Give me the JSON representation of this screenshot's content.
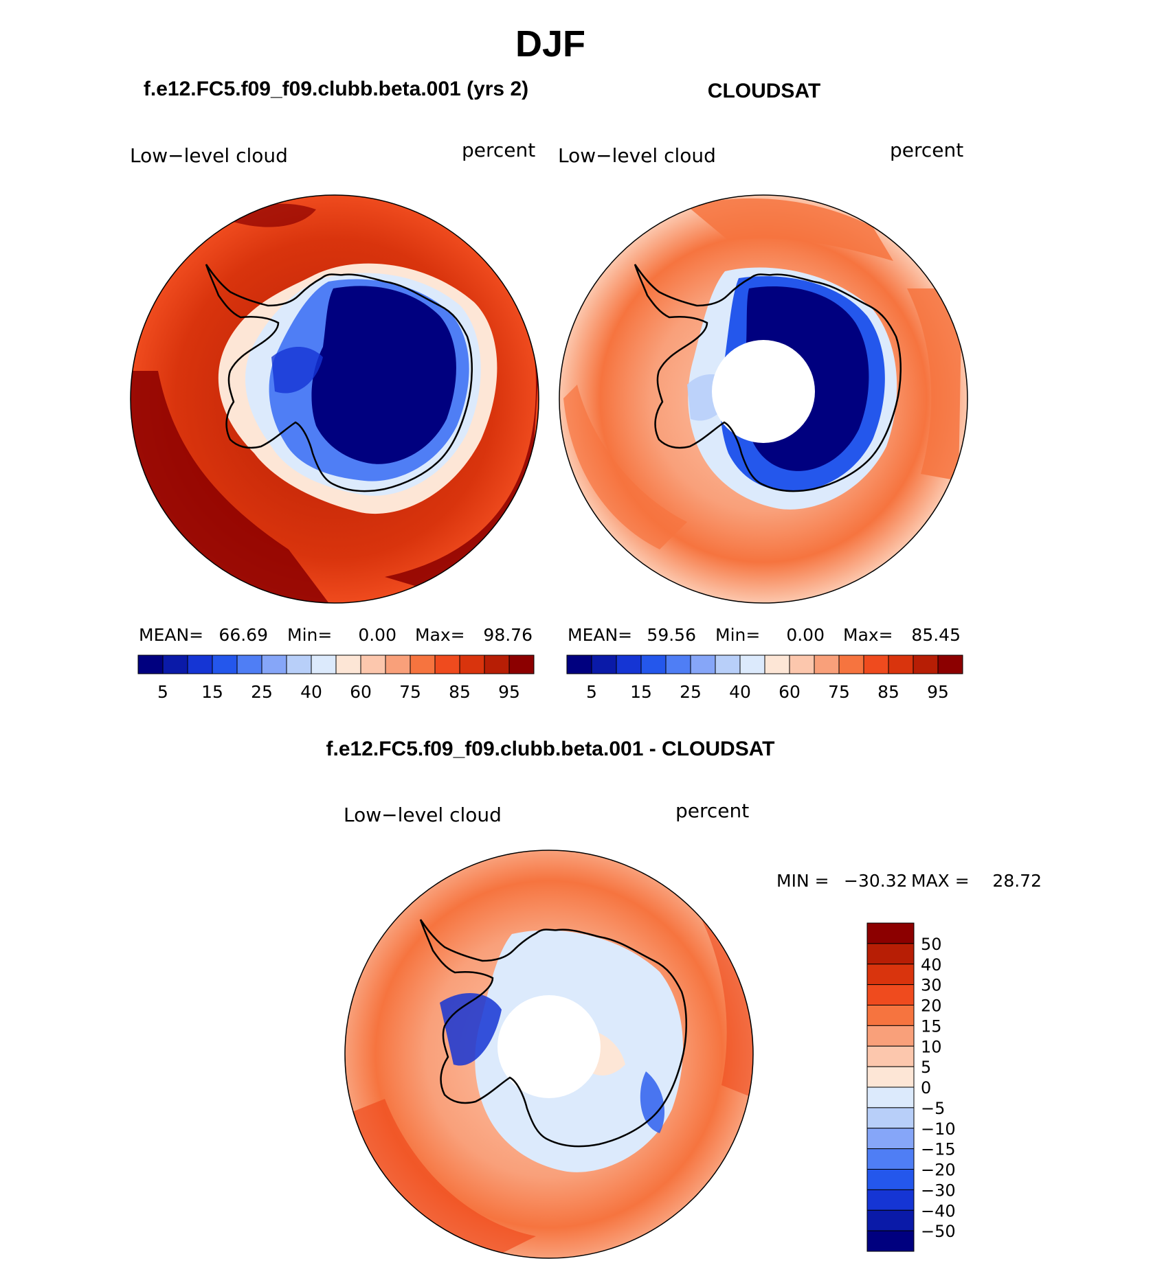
{
  "chart_data": {
    "title": "DJF",
    "type": "heatmap",
    "panels": [
      {
        "id": "model",
        "title": "f.e12.FC5.f09_f09.clubb.beta.001 (yrs 2)",
        "variable": "Low−level cloud",
        "units": "percent",
        "stats": {
          "mean_label": "MEAN=",
          "mean": "66.69",
          "min_label": "Min=",
          "min": "0.00",
          "max_label": "Max=",
          "max": "98.76"
        },
        "levels": [
          5,
          10,
          15,
          20,
          25,
          30,
          40,
          50,
          60,
          70,
          75,
          80,
          85,
          90,
          95
        ],
        "colorbar_ticks": [
          "5",
          "15",
          "25",
          "40",
          "60",
          "75",
          "85",
          "95"
        ]
      },
      {
        "id": "obs",
        "title": "CLOUDSAT",
        "variable": "Low−level cloud",
        "units": "percent",
        "stats": {
          "mean_label": "MEAN=",
          "mean": "59.56",
          "min_label": "Min=",
          "min": "0.00",
          "max_label": "Max=",
          "max": "85.45"
        },
        "levels": [
          5,
          10,
          15,
          20,
          25,
          30,
          40,
          50,
          60,
          70,
          75,
          80,
          85,
          90,
          95
        ],
        "colorbar_ticks": [
          "5",
          "15",
          "25",
          "40",
          "60",
          "75",
          "85",
          "95"
        ]
      },
      {
        "id": "diff",
        "title": "f.e12.FC5.f09_f09.clubb.beta.001 - CLOUDSAT",
        "variable": "Low−level cloud",
        "units": "percent",
        "stats": {
          "min_label": "MIN =",
          "min": "−30.32",
          "max_label": "MAX =",
          "max": "28.72"
        },
        "levels": [
          50,
          40,
          30,
          20,
          15,
          10,
          5,
          0,
          -5,
          -10,
          -15,
          -20,
          -30,
          -40,
          -50
        ],
        "colorbar_ticks": [
          "50",
          "40",
          "30",
          "20",
          "15",
          "10",
          "5",
          "0",
          "−5",
          "−10",
          "−15",
          "−20",
          "−30",
          "−40",
          "−50"
        ]
      }
    ],
    "palette": [
      "#00007f",
      "#0a1aa8",
      "#1535d4",
      "#2457ec",
      "#4f7ef5",
      "#86a6f8",
      "#b8cff9",
      "#dceafc",
      "#fde6d6",
      "#fcc7ad",
      "#f9a07a",
      "#f6743f",
      "#ef4b1e",
      "#d9340d",
      "#b71e05",
      "#8c0000"
    ]
  }
}
